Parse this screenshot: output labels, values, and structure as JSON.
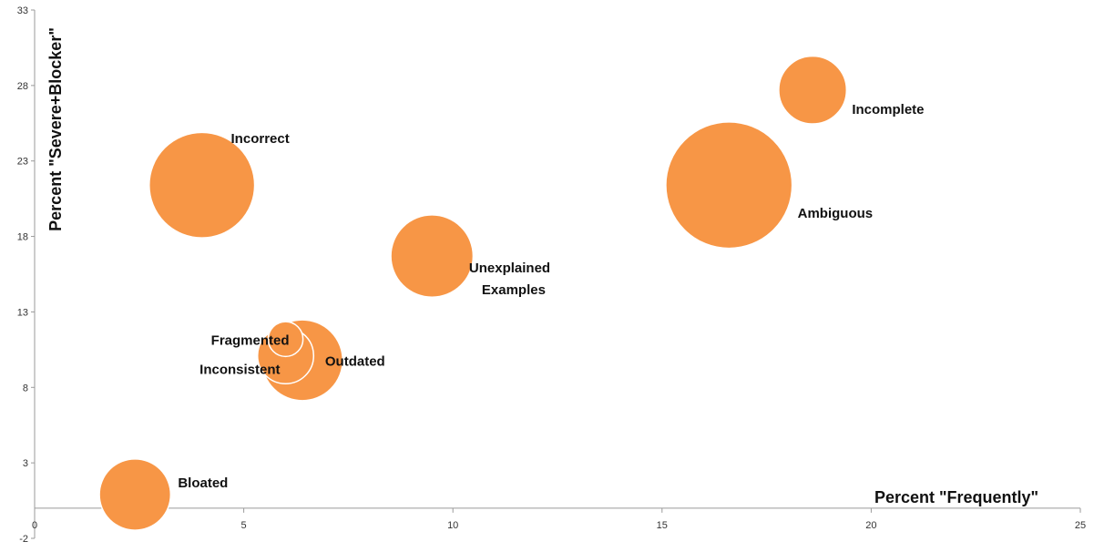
{
  "chart_data": {
    "type": "scatter",
    "variant": "bubble",
    "title": "",
    "xlabel": "Percent \"Frequently\"",
    "ylabel": "Percent \"Severe+Blocker\"",
    "xlim": [
      0,
      25
    ],
    "ylim": [
      -2,
      33
    ],
    "xticks": [
      0,
      5,
      10,
      15,
      20,
      25
    ],
    "yticks": [
      -2,
      3,
      8,
      13,
      18,
      23,
      28,
      33
    ],
    "grid": false,
    "legend": "none",
    "bubble_color": "#f79646",
    "points": [
      {
        "label": "Incomplete",
        "x": 18.6,
        "y": 27.7,
        "size": 1.9
      },
      {
        "label": "Ambiguous",
        "x": 16.6,
        "y": 21.4,
        "size": 6.6
      },
      {
        "label": "Incorrect",
        "x": 4.0,
        "y": 21.4,
        "size": 4.6
      },
      {
        "label": "Unexplained Examples",
        "x": 9.5,
        "y": 16.7,
        "size": 2.8
      },
      {
        "label": "Outdated",
        "x": 6.4,
        "y": 9.8,
        "size": 2.7
      },
      {
        "label": "Inconsistent",
        "x": 6.0,
        "y": 10.1,
        "size": 1.3
      },
      {
        "label": "Fragmented",
        "x": 6.0,
        "y": 11.2,
        "size": 0.5
      },
      {
        "label": "Bloated",
        "x": 2.4,
        "y": 0.9,
        "size": 2.1
      }
    ]
  }
}
